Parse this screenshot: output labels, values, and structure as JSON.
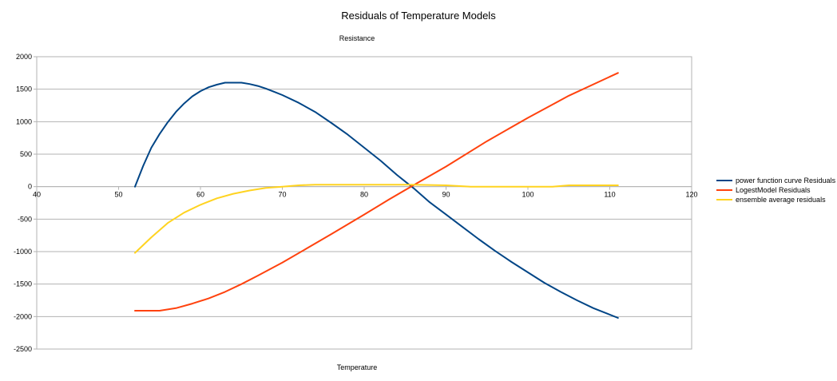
{
  "chart_data": {
    "type": "line",
    "title": "Residuals of Temperature Models",
    "ylabel": "Resistance",
    "xlabel": "Temperature",
    "xlim": [
      40,
      120
    ],
    "ylim": [
      -2500,
      2000
    ],
    "x_ticks": [
      40,
      50,
      60,
      70,
      80,
      90,
      100,
      110,
      120
    ],
    "y_ticks": [
      2000,
      1500,
      1000,
      500,
      0,
      -500,
      -1000,
      -1500,
      -2000,
      -2500
    ],
    "grid": "horizontal",
    "legend_position": "right",
    "series": [
      {
        "name": "power function curve Residuals",
        "color": "#004586",
        "x": [
          52,
          53,
          54,
          55,
          56,
          57,
          58,
          59,
          60,
          61,
          62,
          63,
          64,
          65,
          66,
          67,
          68,
          69,
          70,
          72,
          74,
          76,
          78,
          80,
          82,
          84,
          86,
          88,
          90,
          92,
          94,
          96,
          98,
          100,
          102,
          104,
          106,
          108,
          111
        ],
        "y": [
          0,
          320,
          600,
          810,
          990,
          1150,
          1280,
          1390,
          1470,
          1530,
          1570,
          1600,
          1600,
          1600,
          1580,
          1550,
          1510,
          1460,
          1410,
          1290,
          1150,
          980,
          800,
          600,
          400,
          180,
          -20,
          -240,
          -430,
          -620,
          -810,
          -990,
          -1160,
          -1320,
          -1480,
          -1620,
          -1750,
          -1870,
          -2020
        ]
      },
      {
        "name": "LogestModel Residuals",
        "color": "#ff420e",
        "x": [
          52,
          55,
          57,
          59,
          61,
          63,
          65,
          67,
          70,
          73,
          76,
          80,
          83,
          86,
          90,
          95,
          100,
          105,
          111
        ],
        "y": [
          -1910,
          -1910,
          -1870,
          -1800,
          -1720,
          -1620,
          -1500,
          -1370,
          -1170,
          -950,
          -730,
          -430,
          -200,
          20,
          310,
          700,
          1060,
          1400,
          1750
        ]
      },
      {
        "name": "ensemble average residuals",
        "color": "#ffd320",
        "x": [
          52,
          54,
          56,
          58,
          60,
          62,
          64,
          66,
          68,
          70,
          72,
          74,
          78,
          82,
          86,
          90,
          93,
          98,
          103,
          105,
          111
        ],
        "y": [
          -1020,
          -780,
          -560,
          -400,
          -280,
          -180,
          -110,
          -60,
          -20,
          0,
          20,
          30,
          30,
          30,
          30,
          20,
          0,
          0,
          0,
          20,
          20
        ]
      }
    ]
  }
}
